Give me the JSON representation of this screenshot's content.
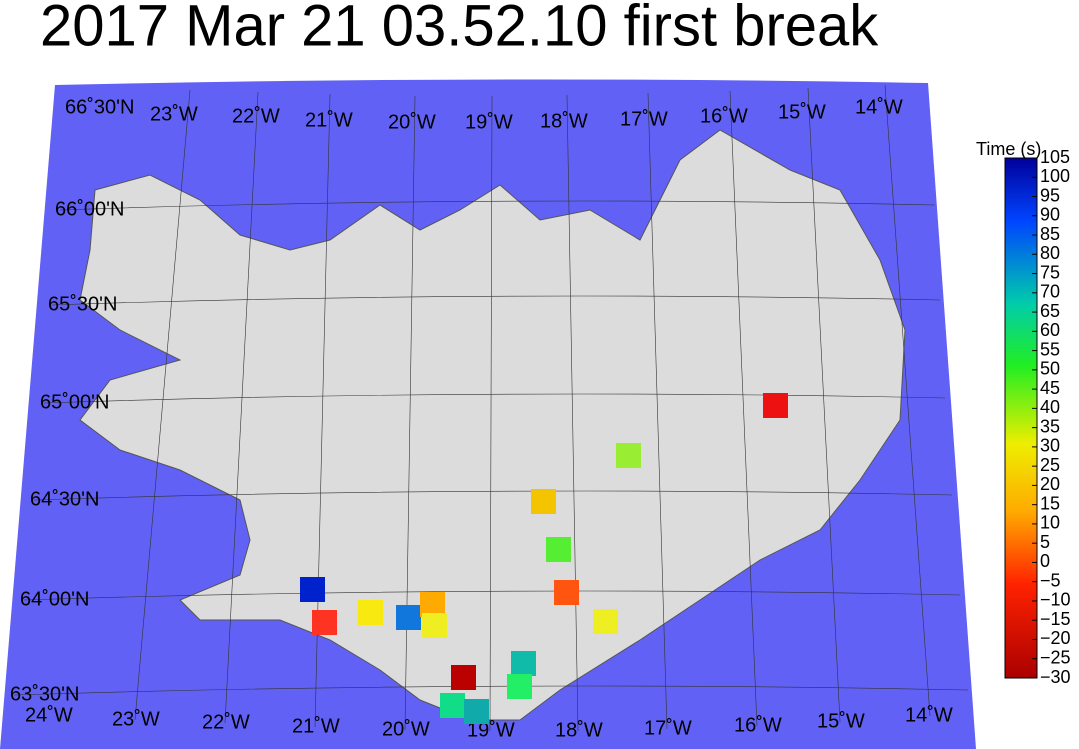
{
  "title": "2017 Mar 21 03.52.10 first break",
  "colorbar": {
    "label": "Time (s)",
    "lim": [
      -30,
      105
    ],
    "ticks": [
      {
        "value": -30,
        "label": "−30"
      },
      {
        "value": -25,
        "label": "−25"
      },
      {
        "value": -20,
        "label": "−20"
      },
      {
        "value": -15,
        "label": "−15"
      },
      {
        "value": -10,
        "label": "−10"
      },
      {
        "value": -5,
        "label": "−5"
      },
      0,
      5,
      10,
      15,
      20,
      25,
      30,
      35,
      40,
      45,
      50,
      55,
      60,
      65,
      70,
      75,
      80,
      85,
      90,
      95,
      100,
      105
    ]
  },
  "map": {
    "top_labels": [
      "66˚30'N",
      "23˚W",
      "22˚W",
      "21˚W",
      "20˚W",
      "19˚W",
      "18˚W",
      "17˚W",
      "16˚W",
      "15˚W",
      "14˚W"
    ],
    "lat_labels": [
      "66˚00'N",
      "65˚30'N",
      "65˚00'N",
      "64˚30'N",
      "64˚00'N",
      "63˚30'N"
    ],
    "bottom_labels": [
      "24˚W",
      "23˚W",
      "22˚W",
      "21˚W",
      "20˚W",
      "19˚W",
      "18˚W",
      "17˚W",
      "16˚W",
      "15˚W",
      "14˚W"
    ],
    "stations": [
      {
        "value": -15,
        "color": "#ee1111"
      },
      {
        "value": 55,
        "color": "#99ee33"
      },
      {
        "value": 25,
        "color": "#f5c400"
      },
      {
        "value": 60,
        "color": "#55ee33"
      },
      {
        "value": 0,
        "color": "#ff5511"
      },
      {
        "value": 40,
        "color": "#eeee22"
      },
      {
        "value": 100,
        "color": "#0022cc"
      },
      {
        "value": -5,
        "color": "#ff3322"
      },
      {
        "value": 35,
        "color": "#f8ea10"
      },
      {
        "value": 90,
        "color": "#1177dd"
      },
      {
        "value": 20,
        "color": "#ffaa00"
      },
      {
        "value": 35,
        "color": "#eeee22"
      },
      {
        "value": 80,
        "color": "#11bbaa"
      },
      {
        "value": 70,
        "color": "#22ee66"
      },
      {
        "value": -25,
        "color": "#bb0000"
      },
      {
        "value": 75,
        "color": "#11dd88"
      },
      {
        "value": 80,
        "color": "#11aaaa"
      }
    ]
  }
}
